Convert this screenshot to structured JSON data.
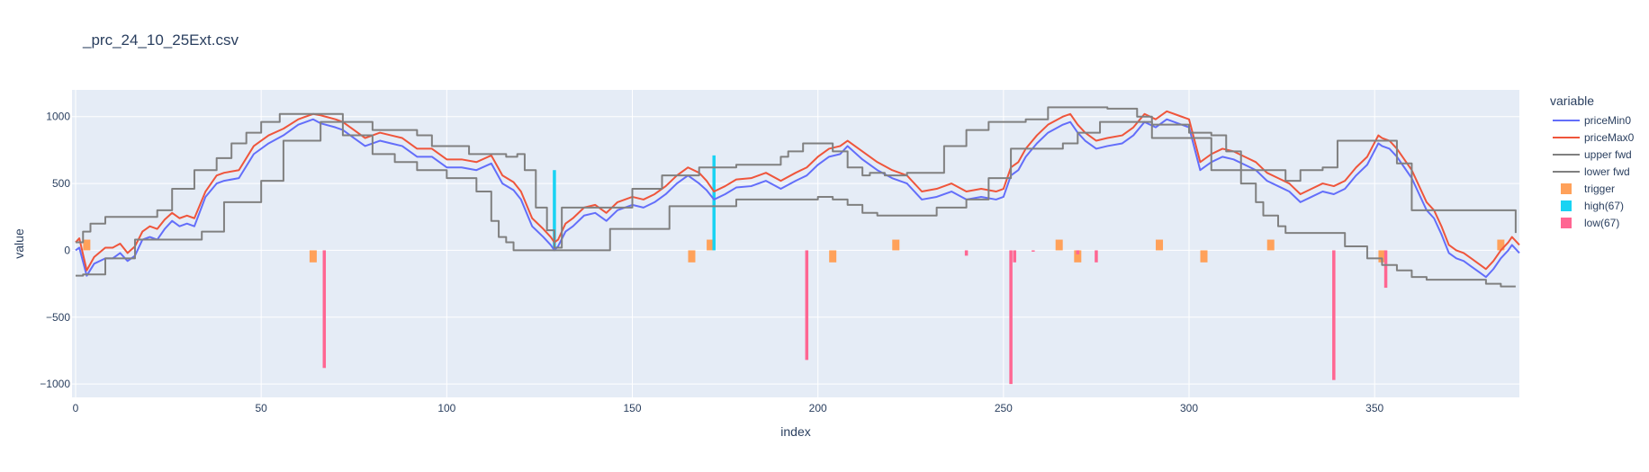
{
  "chart_data": {
    "type": "line",
    "title": "_prc_24_10_25Ext.csv",
    "xlabel": "index",
    "ylabel": "value",
    "xlim": [
      0,
      389
    ],
    "ylim": [
      -1100,
      1200
    ],
    "x_ticks": [
      0,
      50,
      100,
      150,
      200,
      250,
      300,
      350
    ],
    "y_ticks": [
      1000,
      500,
      0,
      -500,
      -1000
    ],
    "y_tick_labels": [
      "1000",
      "500",
      "0",
      "−500",
      "−1000"
    ],
    "grid": true,
    "legend_position": "right",
    "legend_title": "variable",
    "series": [
      {
        "name": "priceMin0",
        "kind": "line",
        "color": "#636efa",
        "x": [
          0,
          1,
          3,
          5,
          8,
          10,
          12,
          14,
          16,
          18,
          20,
          22,
          24,
          26,
          28,
          30,
          32,
          35,
          38,
          40,
          44,
          48,
          52,
          56,
          60,
          62,
          64,
          66,
          70,
          72,
          75,
          78,
          82,
          85,
          88,
          92,
          96,
          100,
          104,
          108,
          112,
          115,
          118,
          120,
          123,
          126,
          128,
          129,
          130,
          132,
          134,
          137,
          140,
          143,
          146,
          150,
          153,
          156,
          159,
          162,
          165,
          168,
          170,
          172,
          175,
          178,
          182,
          186,
          190,
          194,
          197,
          200,
          203,
          206,
          208,
          212,
          216,
          220,
          224,
          228,
          232,
          236,
          240,
          244,
          248,
          250,
          252,
          254,
          256,
          259,
          262,
          266,
          268,
          270,
          272,
          275,
          278,
          282,
          285,
          288,
          291,
          294,
          297,
          300,
          303,
          306,
          309,
          312,
          315,
          318,
          321,
          324,
          327,
          330,
          333,
          336,
          339,
          342,
          345,
          348,
          351,
          352,
          354,
          356,
          358,
          360,
          362,
          364,
          366,
          368,
          370,
          372,
          374,
          376,
          378,
          380,
          382,
          384,
          386,
          387,
          389
        ],
        "y": [
          0,
          20,
          -190,
          -100,
          -60,
          -60,
          -20,
          -80,
          -40,
          80,
          100,
          80,
          160,
          220,
          180,
          200,
          180,
          400,
          500,
          520,
          540,
          720,
          800,
          860,
          940,
          960,
          980,
          950,
          920,
          900,
          840,
          780,
          820,
          800,
          780,
          700,
          700,
          620,
          620,
          600,
          650,
          500,
          450,
          380,
          180,
          100,
          40,
          0,
          30,
          140,
          180,
          260,
          280,
          220,
          300,
          340,
          320,
          360,
          420,
          500,
          560,
          500,
          450,
          380,
          420,
          470,
          480,
          520,
          460,
          520,
          560,
          640,
          700,
          720,
          780,
          680,
          600,
          540,
          500,
          380,
          400,
          440,
          380,
          400,
          380,
          400,
          560,
          600,
          700,
          800,
          880,
          940,
          960,
          880,
          820,
          760,
          780,
          800,
          860,
          960,
          920,
          980,
          950,
          920,
          600,
          660,
          700,
          680,
          640,
          600,
          520,
          480,
          440,
          360,
          400,
          440,
          420,
          460,
          560,
          640,
          800,
          780,
          760,
          700,
          620,
          540,
          420,
          300,
          240,
          120,
          -20,
          -60,
          -80,
          -120,
          -160,
          -200,
          -140,
          -60,
          0,
          40,
          -20
        ]
      },
      {
        "name": "priceMax0",
        "kind": "line",
        "color": "#ef553b",
        "x": [
          0,
          1,
          3,
          5,
          8,
          10,
          12,
          14,
          16,
          18,
          20,
          22,
          24,
          26,
          28,
          30,
          32,
          35,
          38,
          40,
          44,
          48,
          52,
          56,
          60,
          62,
          64,
          66,
          70,
          72,
          75,
          78,
          82,
          85,
          88,
          92,
          96,
          100,
          104,
          108,
          112,
          115,
          118,
          120,
          123,
          126,
          128,
          129,
          130,
          132,
          134,
          137,
          140,
          143,
          146,
          150,
          153,
          156,
          159,
          162,
          165,
          168,
          170,
          172,
          175,
          178,
          182,
          186,
          190,
          194,
          197,
          200,
          203,
          206,
          208,
          212,
          216,
          220,
          224,
          228,
          232,
          236,
          240,
          244,
          248,
          250,
          252,
          254,
          256,
          259,
          262,
          266,
          268,
          270,
          272,
          275,
          278,
          282,
          285,
          288,
          291,
          294,
          297,
          300,
          303,
          306,
          309,
          312,
          315,
          318,
          321,
          324,
          327,
          330,
          333,
          336,
          339,
          342,
          345,
          348,
          351,
          352,
          354,
          356,
          358,
          360,
          362,
          364,
          366,
          368,
          370,
          372,
          374,
          376,
          378,
          380,
          382,
          384,
          386,
          387,
          389
        ],
        "y": [
          60,
          90,
          -150,
          -50,
          20,
          20,
          50,
          -20,
          30,
          140,
          180,
          160,
          230,
          280,
          240,
          260,
          240,
          440,
          560,
          580,
          600,
          780,
          860,
          910,
          980,
          1000,
          1020,
          1010,
          980,
          960,
          900,
          840,
          880,
          860,
          840,
          760,
          760,
          680,
          680,
          660,
          710,
          560,
          510,
          440,
          240,
          160,
          100,
          60,
          80,
          200,
          240,
          320,
          340,
          280,
          360,
          400,
          380,
          420,
          480,
          560,
          620,
          580,
          520,
          440,
          480,
          530,
          540,
          580,
          520,
          580,
          620,
          700,
          760,
          780,
          820,
          740,
          660,
          600,
          560,
          440,
          460,
          500,
          440,
          460,
          440,
          460,
          620,
          660,
          760,
          860,
          940,
          1000,
          1020,
          940,
          880,
          820,
          840,
          860,
          920,
          1020,
          980,
          1040,
          1010,
          980,
          660,
          720,
          760,
          740,
          700,
          660,
          580,
          540,
          500,
          420,
          460,
          500,
          480,
          520,
          620,
          700,
          860,
          840,
          820,
          760,
          680,
          600,
          480,
          360,
          300,
          180,
          40,
          0,
          -20,
          -60,
          -100,
          -140,
          -80,
          0,
          60,
          100,
          40
        ]
      },
      {
        "name": "upper fwd",
        "kind": "step",
        "color": "#808080",
        "x": [
          0,
          2,
          4,
          8,
          18,
          22,
          26,
          32,
          38,
          42,
          46,
          50,
          55,
          60,
          66,
          72,
          80,
          92,
          96,
          106,
          116,
          119,
          121,
          124,
          127,
          129,
          131,
          150,
          158,
          168,
          178,
          190,
          192,
          196,
          200,
          204,
          208,
          212,
          214,
          218,
          224,
          234,
          240,
          246,
          250,
          255,
          256,
          262,
          268,
          272,
          278,
          286,
          290,
          294,
          300,
          304,
          306,
          326,
          330,
          336,
          340,
          350,
          352,
          356,
          360,
          388
        ],
        "y": [
          60,
          140,
          200,
          250,
          250,
          300,
          460,
          600,
          690,
          800,
          880,
          960,
          1020,
          1020,
          1020,
          960,
          900,
          860,
          780,
          720,
          700,
          720,
          600,
          320,
          150,
          20,
          320,
          460,
          560,
          620,
          640,
          700,
          740,
          800,
          800,
          740,
          620,
          560,
          580,
          560,
          580,
          780,
          900,
          960,
          960,
          960,
          980,
          1070,
          1070,
          1070,
          1060,
          1000,
          840,
          840,
          840,
          840,
          600,
          520,
          600,
          620,
          820,
          820,
          820,
          650,
          300,
          130
        ]
      },
      {
        "name": "lower fwd",
        "kind": "step",
        "color": "#808080",
        "x": [
          0,
          2,
          8,
          16,
          28,
          34,
          40,
          50,
          56,
          66,
          72,
          80,
          86,
          92,
          100,
          104,
          108,
          112,
          114,
          116,
          118,
          128,
          144,
          160,
          178,
          200,
          204,
          208,
          212,
          216,
          224,
          232,
          240,
          246,
          252,
          266,
          270,
          276,
          290,
          300,
          306,
          310,
          314,
          318,
          320,
          324,
          326,
          336,
          342,
          348,
          352,
          356,
          360,
          364,
          368,
          376,
          380,
          384,
          388
        ],
        "y": [
          -190,
          -180,
          -60,
          80,
          80,
          140,
          360,
          520,
          820,
          960,
          860,
          720,
          660,
          600,
          540,
          540,
          440,
          220,
          100,
          60,
          0,
          0,
          160,
          330,
          380,
          400,
          380,
          340,
          280,
          260,
          260,
          320,
          380,
          540,
          760,
          800,
          880,
          960,
          940,
          880,
          860,
          740,
          500,
          360,
          260,
          180,
          130,
          130,
          30,
          -60,
          -110,
          -150,
          -200,
          -220,
          -220,
          -220,
          -250,
          -270,
          -270
        ]
      },
      {
        "name": "trigger",
        "kind": "bar",
        "color": "#ffa15a",
        "x": [
          3,
          64,
          166,
          171,
          204,
          221,
          265,
          270,
          292,
          304,
          322,
          352,
          384
        ],
        "y": [
          80,
          -90,
          -90,
          80,
          -90,
          80,
          80,
          -90,
          80,
          -90,
          80,
          -90,
          80
        ]
      },
      {
        "name": "high(67)",
        "kind": "bar",
        "color": "#19d3f3",
        "x": [
          129,
          172
        ],
        "y": [
          600,
          710
        ]
      },
      {
        "name": "low(67)",
        "kind": "bar",
        "color": "#ff6692",
        "x": [
          67,
          197,
          240,
          252,
          253,
          258,
          270,
          275,
          339,
          353
        ],
        "y": [
          -880,
          -820,
          -40,
          -1000,
          -90,
          -10,
          -30,
          -90,
          -970,
          -280
        ]
      }
    ]
  }
}
